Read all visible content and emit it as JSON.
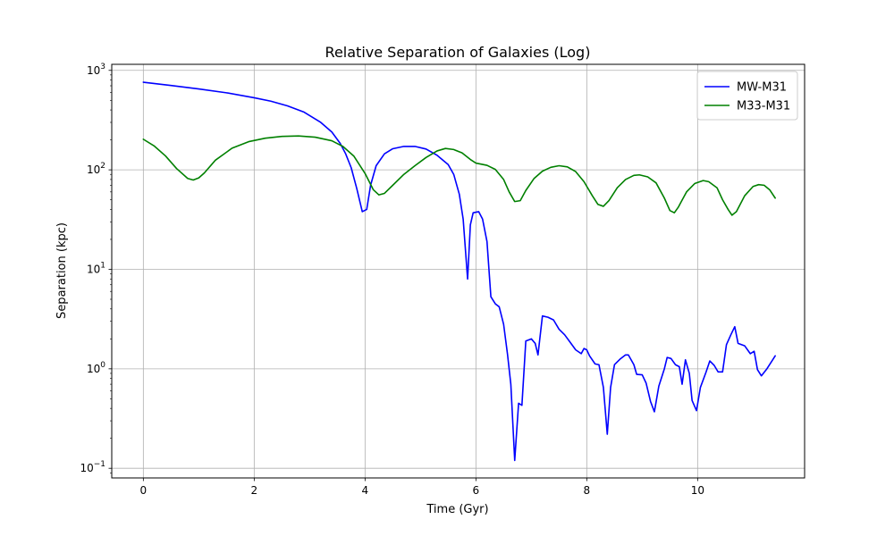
{
  "chart_data": {
    "type": "line",
    "title": "Relative Separation of Galaxies (Log)",
    "xlabel": "Time (Gyr)",
    "ylabel": "Separation (kpc)",
    "xlim": [
      -0.57,
      11.93
    ],
    "ylim": [
      0.08,
      1150
    ],
    "yscale": "log",
    "grid": true,
    "legend_position": "top-right",
    "x_ticks": [
      {
        "value": 0,
        "label": "0"
      },
      {
        "value": 2,
        "label": "2"
      },
      {
        "value": 4,
        "label": "4"
      },
      {
        "value": 6,
        "label": "6"
      },
      {
        "value": 8,
        "label": "8"
      },
      {
        "value": 10,
        "label": "10"
      }
    ],
    "y_ticks": [
      {
        "value": 0.1,
        "base": "10",
        "exp": "−1"
      },
      {
        "value": 1,
        "base": "10",
        "exp": "0"
      },
      {
        "value": 10,
        "base": "10",
        "exp": "1"
      },
      {
        "value": 100,
        "base": "10",
        "exp": "2"
      },
      {
        "value": 1000,
        "base": "10",
        "exp": "3"
      }
    ],
    "series": [
      {
        "name": "MW-M31",
        "color": "#0000ff",
        "points": [
          [
            0,
            760
          ],
          [
            0.5,
            705
          ],
          [
            1.0,
            650
          ],
          [
            1.5,
            595
          ],
          [
            2.0,
            530
          ],
          [
            2.3,
            490
          ],
          [
            2.6,
            440
          ],
          [
            2.9,
            380
          ],
          [
            3.2,
            300
          ],
          [
            3.4,
            240
          ],
          [
            3.55,
            185
          ],
          [
            3.65,
            145
          ],
          [
            3.75,
            105
          ],
          [
            3.85,
            65
          ],
          [
            3.95,
            38
          ],
          [
            4.03,
            40
          ],
          [
            4.1,
            70
          ],
          [
            4.2,
            110
          ],
          [
            4.35,
            145
          ],
          [
            4.5,
            163
          ],
          [
            4.7,
            172
          ],
          [
            4.9,
            172
          ],
          [
            5.1,
            162
          ],
          [
            5.3,
            140
          ],
          [
            5.5,
            113
          ],
          [
            5.6,
            90
          ],
          [
            5.7,
            57
          ],
          [
            5.77,
            32
          ],
          [
            5.85,
            8
          ],
          [
            5.9,
            28
          ],
          [
            5.95,
            37
          ],
          [
            6.05,
            38
          ],
          [
            6.12,
            32
          ],
          [
            6.2,
            19
          ],
          [
            6.27,
            5.3
          ],
          [
            6.35,
            4.5
          ],
          [
            6.42,
            4.2
          ],
          [
            6.5,
            2.8
          ],
          [
            6.57,
            1.4
          ],
          [
            6.63,
            0.7
          ],
          [
            6.7,
            0.12
          ],
          [
            6.77,
            0.45
          ],
          [
            6.83,
            0.43
          ],
          [
            6.9,
            1.9
          ],
          [
            7.0,
            2.0
          ],
          [
            7.07,
            1.8
          ],
          [
            7.12,
            1.38
          ],
          [
            7.2,
            3.4
          ],
          [
            7.3,
            3.3
          ],
          [
            7.4,
            3.1
          ],
          [
            7.5,
            2.5
          ],
          [
            7.6,
            2.2
          ],
          [
            7.7,
            1.85
          ],
          [
            7.8,
            1.55
          ],
          [
            7.9,
            1.42
          ],
          [
            7.95,
            1.6
          ],
          [
            8.0,
            1.55
          ],
          [
            8.05,
            1.35
          ],
          [
            8.15,
            1.12
          ],
          [
            8.22,
            1.1
          ],
          [
            8.3,
            0.65
          ],
          [
            8.37,
            0.22
          ],
          [
            8.43,
            0.65
          ],
          [
            8.5,
            1.1
          ],
          [
            8.6,
            1.25
          ],
          [
            8.7,
            1.38
          ],
          [
            8.75,
            1.38
          ],
          [
            8.85,
            1.1
          ],
          [
            8.9,
            0.88
          ],
          [
            9.0,
            0.87
          ],
          [
            9.07,
            0.72
          ],
          [
            9.15,
            0.47
          ],
          [
            9.22,
            0.37
          ],
          [
            9.3,
            0.67
          ],
          [
            9.4,
            1.0
          ],
          [
            9.45,
            1.3
          ],
          [
            9.52,
            1.27
          ],
          [
            9.6,
            1.1
          ],
          [
            9.67,
            1.05
          ],
          [
            9.72,
            0.7
          ],
          [
            9.78,
            1.23
          ],
          [
            9.85,
            0.9
          ],
          [
            9.9,
            0.48
          ],
          [
            9.98,
            0.38
          ],
          [
            10.05,
            0.65
          ],
          [
            10.15,
            0.92
          ],
          [
            10.22,
            1.2
          ],
          [
            10.3,
            1.08
          ],
          [
            10.37,
            0.93
          ],
          [
            10.45,
            0.93
          ],
          [
            10.52,
            1.75
          ],
          [
            10.6,
            2.2
          ],
          [
            10.67,
            2.65
          ],
          [
            10.73,
            1.8
          ],
          [
            10.85,
            1.7
          ],
          [
            10.95,
            1.42
          ],
          [
            11.02,
            1.5
          ],
          [
            11.08,
            0.98
          ],
          [
            11.15,
            0.85
          ],
          [
            11.25,
            1.0
          ],
          [
            11.35,
            1.22
          ],
          [
            11.4,
            1.35
          ]
        ]
      },
      {
        "name": "M33-M31",
        "color": "#008000",
        "points": [
          [
            0,
            203
          ],
          [
            0.2,
            173
          ],
          [
            0.4,
            138
          ],
          [
            0.6,
            103
          ],
          [
            0.8,
            82
          ],
          [
            0.9,
            79
          ],
          [
            1.0,
            83
          ],
          [
            1.1,
            93
          ],
          [
            1.3,
            125
          ],
          [
            1.6,
            165
          ],
          [
            1.9,
            192
          ],
          [
            2.2,
            208
          ],
          [
            2.5,
            217
          ],
          [
            2.8,
            219
          ],
          [
            3.1,
            213
          ],
          [
            3.4,
            196
          ],
          [
            3.6,
            172
          ],
          [
            3.8,
            137
          ],
          [
            4.0,
            92
          ],
          [
            4.15,
            63
          ],
          [
            4.25,
            56
          ],
          [
            4.35,
            58
          ],
          [
            4.5,
            70
          ],
          [
            4.7,
            90
          ],
          [
            4.9,
            110
          ],
          [
            5.1,
            133
          ],
          [
            5.3,
            155
          ],
          [
            5.45,
            164
          ],
          [
            5.6,
            160
          ],
          [
            5.75,
            148
          ],
          [
            5.9,
            127
          ],
          [
            6.0,
            117
          ],
          [
            6.2,
            111
          ],
          [
            6.35,
            101
          ],
          [
            6.5,
            80
          ],
          [
            6.6,
            60
          ],
          [
            6.7,
            48
          ],
          [
            6.8,
            49
          ],
          [
            6.9,
            62
          ],
          [
            7.05,
            82
          ],
          [
            7.2,
            97
          ],
          [
            7.35,
            106
          ],
          [
            7.5,
            110
          ],
          [
            7.65,
            107
          ],
          [
            7.8,
            96
          ],
          [
            7.95,
            76
          ],
          [
            8.1,
            55
          ],
          [
            8.2,
            45
          ],
          [
            8.3,
            43
          ],
          [
            8.4,
            49
          ],
          [
            8.55,
            66
          ],
          [
            8.7,
            80
          ],
          [
            8.85,
            88
          ],
          [
            8.95,
            89
          ],
          [
            9.1,
            85
          ],
          [
            9.25,
            74
          ],
          [
            9.4,
            52
          ],
          [
            9.5,
            39
          ],
          [
            9.58,
            37
          ],
          [
            9.65,
            42
          ],
          [
            9.8,
            60
          ],
          [
            9.95,
            73
          ],
          [
            10.1,
            78
          ],
          [
            10.2,
            76
          ],
          [
            10.35,
            66
          ],
          [
            10.45,
            50
          ],
          [
            10.55,
            40
          ],
          [
            10.62,
            35
          ],
          [
            10.7,
            38
          ],
          [
            10.85,
            55
          ],
          [
            11.0,
            68
          ],
          [
            11.1,
            71
          ],
          [
            11.2,
            70
          ],
          [
            11.3,
            63
          ],
          [
            11.4,
            52
          ]
        ]
      }
    ]
  }
}
